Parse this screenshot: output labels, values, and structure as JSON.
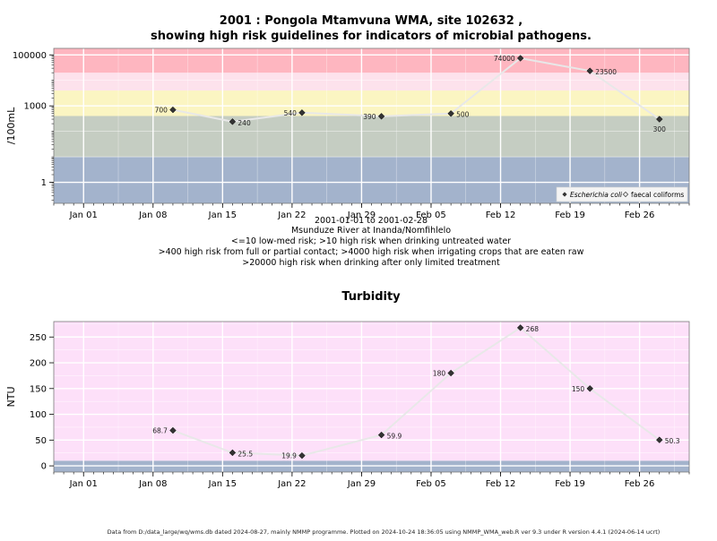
{
  "chart_data": [
    {
      "type": "line",
      "title_line1": "2001 : Pongola Mtamvuna WMA, site 102632 ,",
      "title_line2": "showing high risk guidelines for indicators of microbial pathogens.",
      "ylabel": "/100mL",
      "y_scale": "log10",
      "ylim": [
        0.15,
        180000
      ],
      "y_ticks": [
        1,
        1000,
        100000
      ],
      "y_tick_labels": [
        "1",
        "1000",
        "100000"
      ],
      "x_ticks": [
        "2001-01-01",
        "2001-01-08",
        "2001-01-15",
        "2001-01-22",
        "2001-01-29",
        "2001-02-05",
        "2001-02-12",
        "2001-02-19",
        "2001-02-26"
      ],
      "x_tick_labels": [
        "Jan 01",
        "Jan 08",
        "Jan 15",
        "Jan 22",
        "Jan 29",
        "Feb 05",
        "Feb 12",
        "Feb 19",
        "Feb 26"
      ],
      "xlim": [
        "2000-12-29",
        "2001-03-03"
      ],
      "risk_bands": [
        {
          "from": 0.15,
          "to": 10,
          "color": "#a3b3cc"
        },
        {
          "from": 10,
          "to": 400,
          "color": "#c5cdc2"
        },
        {
          "from": 400,
          "to": 4000,
          "color": "#fbf5c2"
        },
        {
          "from": 4000,
          "to": 20000,
          "color": "#fde2ec"
        },
        {
          "from": 20000,
          "to": 180000,
          "color": "#feb6c0"
        }
      ],
      "series": [
        {
          "name": "Escherichia coli",
          "x": [
            "2001-01-10",
            "2001-01-16",
            "2001-01-23",
            "2001-01-31",
            "2001-02-07",
            "2001-02-14",
            "2001-02-21",
            "2001-02-28"
          ],
          "values": [
            700,
            240,
            540,
            390,
            500,
            74000,
            23500,
            300
          ],
          "labels": [
            "700",
            "240",
            "540",
            "390",
            "500",
            "74000",
            "23500",
            "300"
          ],
          "label_side": [
            "left",
            "right",
            "left",
            "left",
            "right",
            "left",
            "right",
            "below"
          ]
        }
      ],
      "legend": {
        "position": "bottom-right",
        "items": [
          "Escherichia coli",
          "faecal coliforms"
        ]
      },
      "notes": [
        "2001-01-01 to 2001-02-28",
        "Msunduze River at Inanda/Nomfihlelo",
        "<=10 low-med risk; >10 high risk when drinking untreated water",
        ">400 high risk from full or partial contact; >4000 high risk when irrigating crops that are eaten raw",
        ">20000 high risk when drinking after only limited treatment"
      ]
    },
    {
      "type": "line",
      "title": "Turbidity",
      "ylabel": "NTU",
      "ylim": [
        -12,
        280
      ],
      "y_ticks": [
        0,
        50,
        100,
        150,
        200,
        250
      ],
      "y_tick_labels": [
        "0",
        "50",
        "100",
        "150",
        "200",
        "250"
      ],
      "x_ticks": [
        "2001-01-01",
        "2001-01-08",
        "2001-01-15",
        "2001-01-22",
        "2001-01-29",
        "2001-02-05",
        "2001-02-12",
        "2001-02-19",
        "2001-02-26"
      ],
      "x_tick_labels": [
        "Jan 01",
        "Jan 08",
        "Jan 15",
        "Jan 22",
        "Jan 29",
        "Feb 05",
        "Feb 12",
        "Feb 19",
        "Feb 26"
      ],
      "xlim": [
        "2000-12-29",
        "2001-03-03"
      ],
      "risk_bands": [
        {
          "from": -12,
          "to": 10,
          "color": "#a3b3cc"
        },
        {
          "from": 10,
          "to": 280,
          "color": "#fde0f9"
        }
      ],
      "series": [
        {
          "x": [
            "2001-01-10",
            "2001-01-16",
            "2001-01-23",
            "2001-01-31",
            "2001-02-07",
            "2001-02-14",
            "2001-02-21",
            "2001-02-28"
          ],
          "values": [
            68.7,
            25.5,
            19.9,
            59.9,
            180,
            268,
            150,
            50.3
          ],
          "labels": [
            "68.7",
            "25.5",
            "19.9",
            "59.9",
            "180",
            "268",
            "150",
            "50.3"
          ],
          "label_side": [
            "left",
            "right",
            "left",
            "right",
            "left",
            "right",
            "left",
            "right"
          ]
        }
      ]
    }
  ],
  "footer": "Data from D:/data_large/wq/wms.db dated 2024-08-27, mainly NMMP programme. Plotted on 2024-10-24 18:36:05 using NMMP_WMA_web.R ver 9.3 under R version 4.4.1 (2024-06-14 ucrt)"
}
